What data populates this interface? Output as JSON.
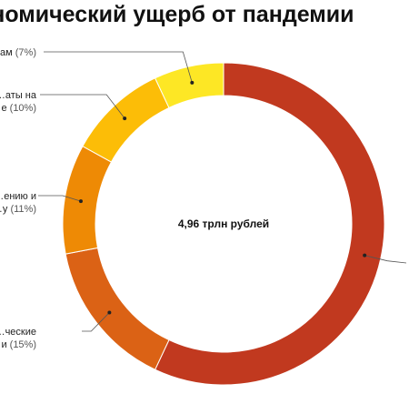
{
  "chart_data": {
    "type": "pie",
    "title": "Экономический ущерб от пандемии",
    "center_label": "4,96 трлн рублей",
    "slices": [
      {
        "label_lines": [
          "",
          ""
        ],
        "percent_text": "",
        "value": 57,
        "color": "#C1391F"
      },
      {
        "label_lines": [
          "…ческие",
          "…и"
        ],
        "percent_text": "(15%)",
        "value": 15,
        "color": "#DB6215"
      },
      {
        "label_lines": [
          "…ению и",
          "…у"
        ],
        "percent_text": "(11%)",
        "value": 11,
        "color": "#EE8A05"
      },
      {
        "label_lines": [
          "…аты на",
          "…е"
        ],
        "percent_text": "(10%)",
        "value": 10,
        "color": "#FCBD07"
      },
      {
        "label_lines": [
          "…ам"
        ],
        "percent_text": "(7%)",
        "value": 7,
        "color": "#FDE725"
      }
    ]
  }
}
